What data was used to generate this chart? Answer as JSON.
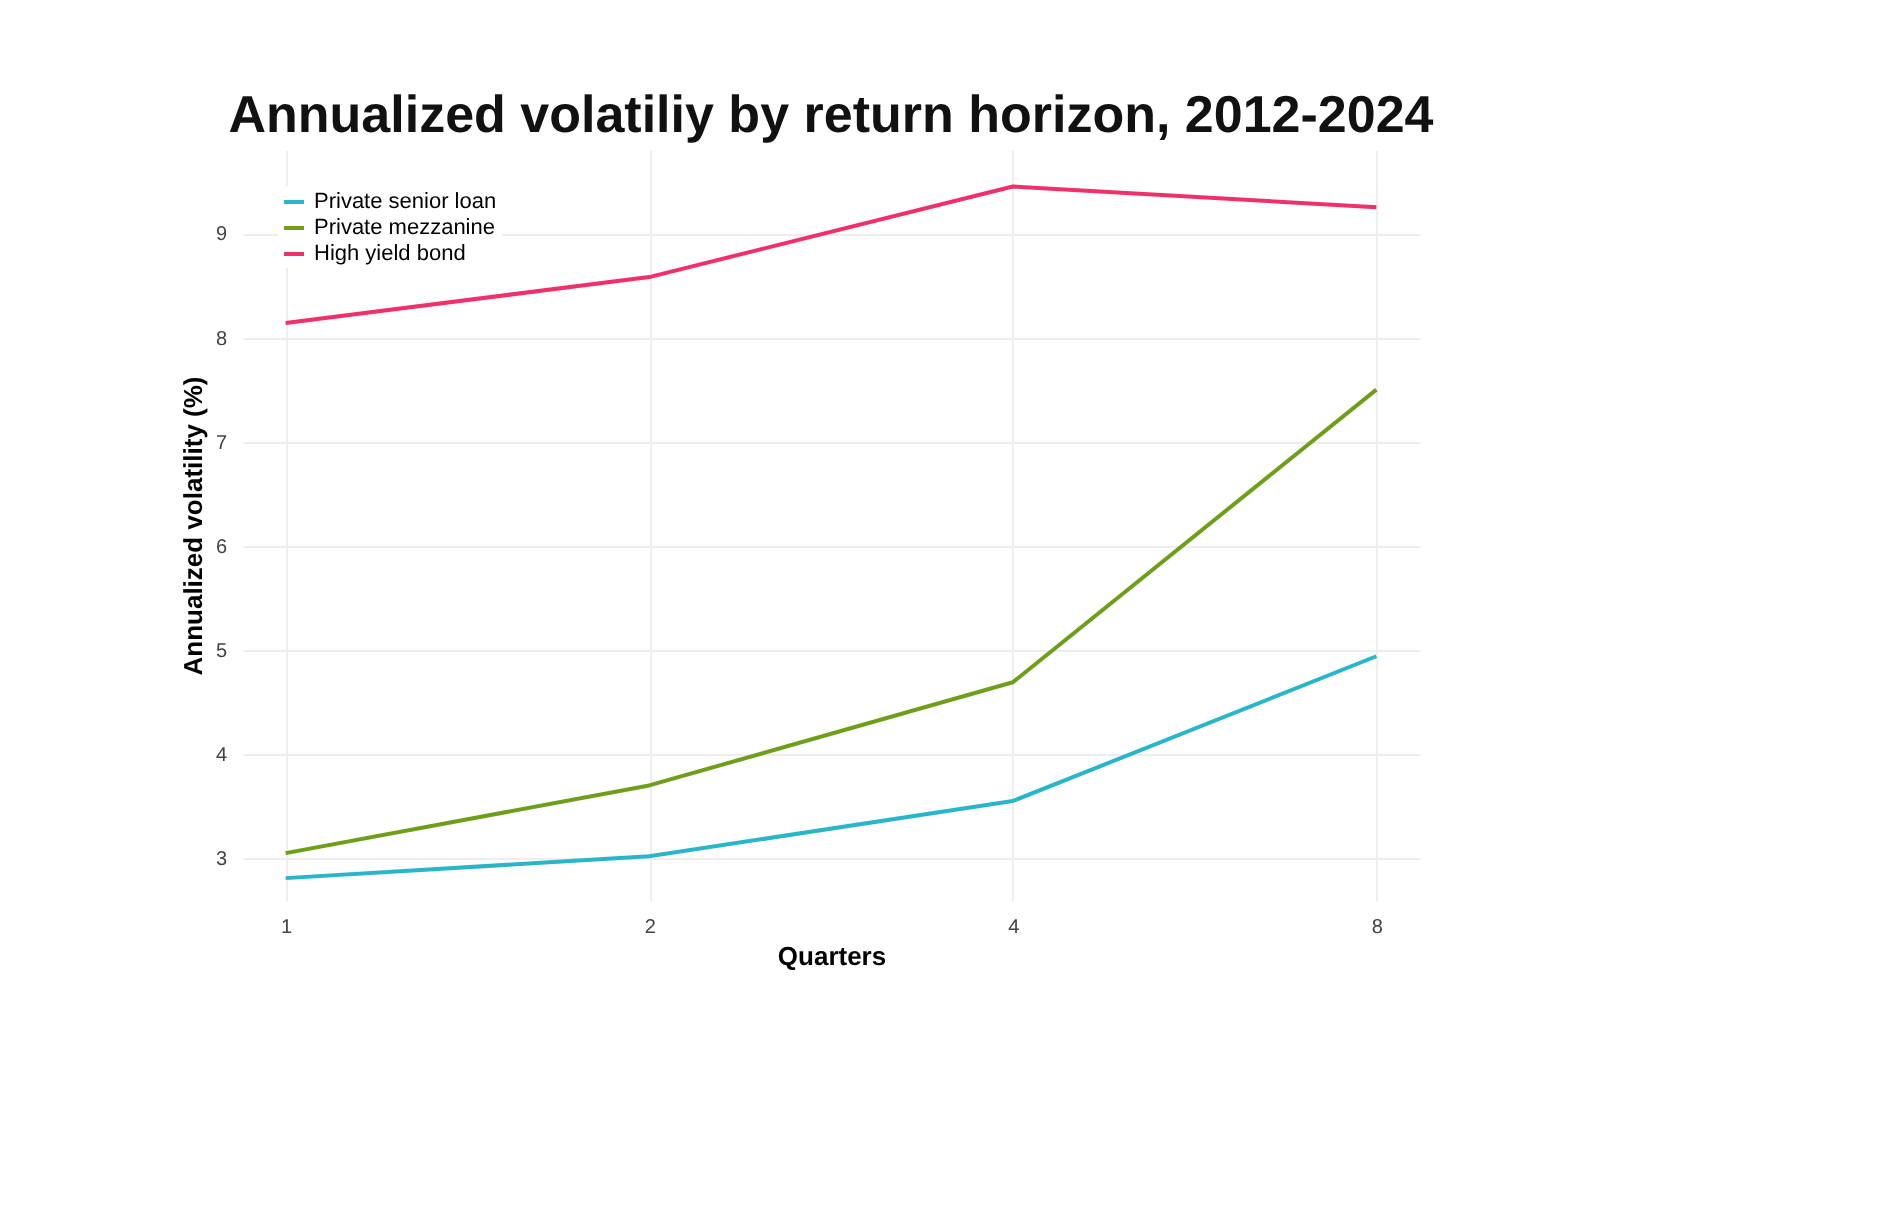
{
  "chart_data": {
    "type": "line",
    "title": "Annualized volatiliy by return horizon, 2012-2024",
    "xlabel": "Quarters",
    "ylabel": "Annualized volatility (%)",
    "categories": [
      "1",
      "2",
      "4",
      "8"
    ],
    "series": [
      {
        "name": "Private senior loan",
        "color": "#29b6c9",
        "values": [
          2.81,
          3.02,
          3.55,
          4.94
        ]
      },
      {
        "name": "Private mezzanine",
        "color": "#6f9f1a",
        "values": [
          3.05,
          3.7,
          4.69,
          7.5
        ]
      },
      {
        "name": "High yield bond",
        "color": "#f0306a",
        "values": [
          8.14,
          8.58,
          9.45,
          9.25
        ]
      }
    ],
    "ylim": [
      2.6,
      9.8
    ],
    "yticks": [
      3,
      4,
      5,
      6,
      7,
      8,
      9
    ],
    "grid": true,
    "legend": "top left",
    "marker": "none",
    "line_style": "solid"
  }
}
